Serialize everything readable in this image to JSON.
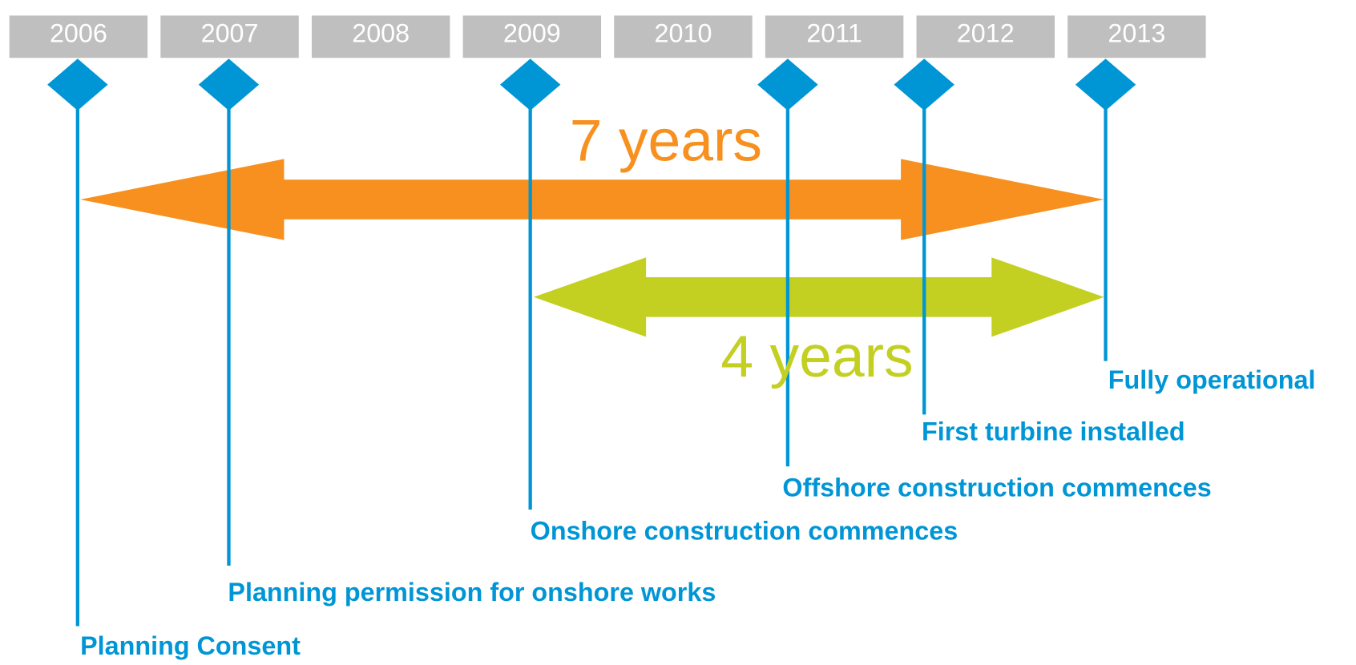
{
  "years": [
    "2006",
    "2007",
    "2008",
    "2009",
    "2010",
    "2011",
    "2012",
    "2013"
  ],
  "milestones": [
    {
      "label": "Planning Consent"
    },
    {
      "label": "Planning permission for onshore works"
    },
    {
      "label": "Onshore construction commences"
    },
    {
      "label": "Offshore construction commences"
    },
    {
      "label": "First turbine installed"
    },
    {
      "label": "Fully operational"
    }
  ],
  "spans": [
    {
      "label": "7 years"
    },
    {
      "label": "4 years"
    }
  ]
}
